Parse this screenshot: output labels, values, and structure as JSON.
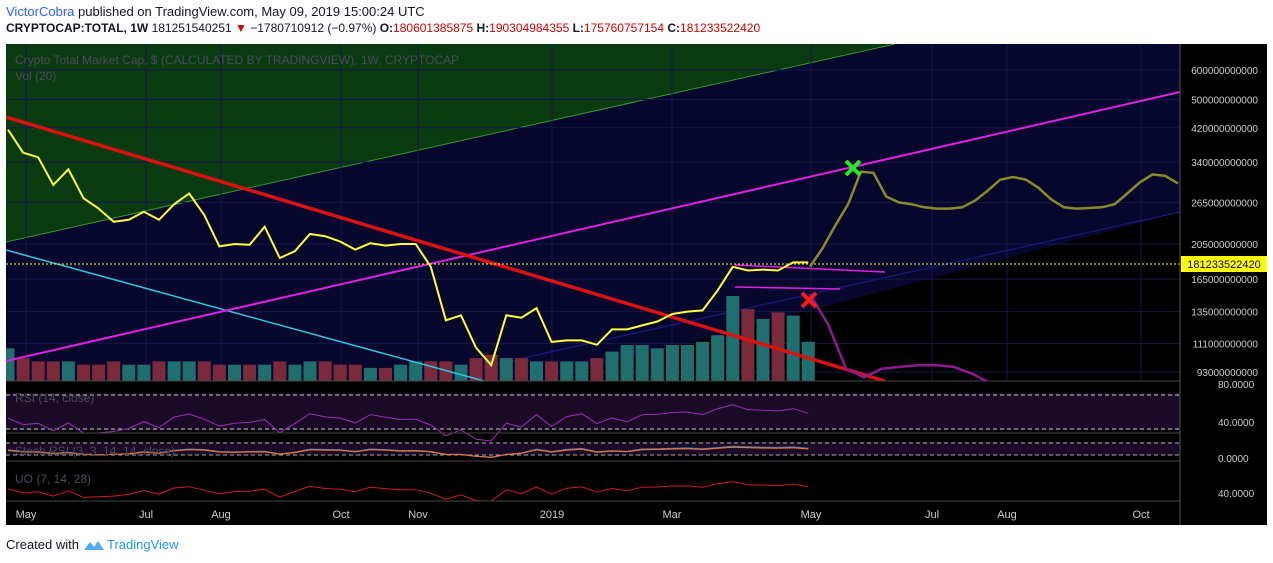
{
  "header": {
    "author": "VictorCobra",
    "published_text": "published on TradingView.com, May 09, 2019 15:00:24 UTC",
    "symbol": "CRYPTOCAP:TOTAL, 1W",
    "last": "181251540251",
    "change_arrow": "▼",
    "change": "−1780710912 (−0.97%)",
    "o_label": "O:",
    "o_val": "180601385875",
    "h_label": "H:",
    "h_val": "190304984355",
    "l_label": "L:",
    "l_val": "175760757154",
    "c_label": "C:",
    "c_val": "181233522420"
  },
  "chart_title": "Crypto Total Market Cap, $ (CALCULATED BY TRADINGVIEW), 1W, CRYPTOCAP",
  "vol_label": "Vol (20)",
  "rsi_label": "RSI (14, close)",
  "stoch_label": "Stoch RSI (3, 3, 14, 14, close)",
  "uo_label": "UO (7, 14, 28)",
  "footer": {
    "created_with": "Created with",
    "brand": "TradingView"
  },
  "colors": {
    "price_line": "#ffff33",
    "projection_up": "#8a8a28",
    "projection_down": "#8e1a8e",
    "channel": "#e020e0",
    "downtrend": "#dd1111",
    "blue_line": "#2ec5e0",
    "bull_bar": "#1f6f6f",
    "bear_bar": "#7a2a3a",
    "price_tag": "#ffff00"
  },
  "chart_data": {
    "type": "line",
    "title": "Crypto Total Market Cap, $ (CALCULATED BY TRADINGVIEW), 1W, CRYPTOCAP",
    "y_scale": "log",
    "x_ticks": [
      "May",
      "Jul",
      "Aug",
      "Oct",
      "Nov",
      "2019",
      "Mar",
      "May",
      "Jul",
      "Aug",
      "Oct"
    ],
    "y_ticks": [
      "600000000000",
      "500000000000",
      "420000000000",
      "340000000000",
      "265000000000",
      "205000000000",
      "165000000000",
      "135000000000",
      "111000000000",
      "93000000000"
    ],
    "last_price_label": "181233522420",
    "rsi_ticks": [
      "80.0000",
      "40.0000"
    ],
    "stoch_ticks": [
      "0.0000"
    ],
    "uo_ticks": [
      "40.0000"
    ],
    "series": [
      {
        "name": "",
        "role": "price",
        "values": [
          415,
          360,
          350,
          295,
          325,
          272,
          255,
          235,
          238,
          250,
          238,
          262,
          280,
          245,
          202,
          205,
          204,
          228,
          188,
          196,
          218,
          215,
          208,
          198,
          206,
          203,
          205,
          205,
          178,
          128,
          132,
          108,
          97,
          132,
          130,
          138,
          112,
          113,
          113,
          110,
          121,
          121,
          124,
          127,
          133,
          135,
          136,
          154,
          178,
          174,
          175,
          174,
          183,
          183
        ]
      },
      {
        "name": "",
        "role": "projection-up",
        "values": [
          178,
          200,
          230,
          262,
          320,
          318,
          275,
          265,
          262,
          257,
          255,
          255,
          257,
          268,
          285,
          305,
          310,
          305,
          290,
          270,
          257,
          255,
          256,
          257,
          262,
          280,
          300,
          315,
          312,
          298
        ]
      },
      {
        "name": "",
        "role": "projection-down",
        "values": [
          150,
          125,
          95,
          90,
          95,
          96,
          97,
          97,
          96,
          92,
          87
        ]
      },
      {
        "name": "Vol (20)",
        "role": "volume",
        "values": [
          10,
          7,
          6,
          6,
          6,
          5,
          5,
          6,
          5,
          5,
          6,
          6,
          6,
          6,
          5,
          5,
          5,
          5,
          6,
          5,
          6,
          6,
          5,
          5,
          4,
          4,
          5,
          6,
          6,
          6,
          5,
          7,
          8,
          7,
          7,
          6,
          6,
          6,
          6,
          7,
          9,
          11,
          11,
          10,
          11,
          11,
          12,
          14,
          26,
          22,
          19,
          21,
          20,
          12
        ]
      }
    ]
  }
}
